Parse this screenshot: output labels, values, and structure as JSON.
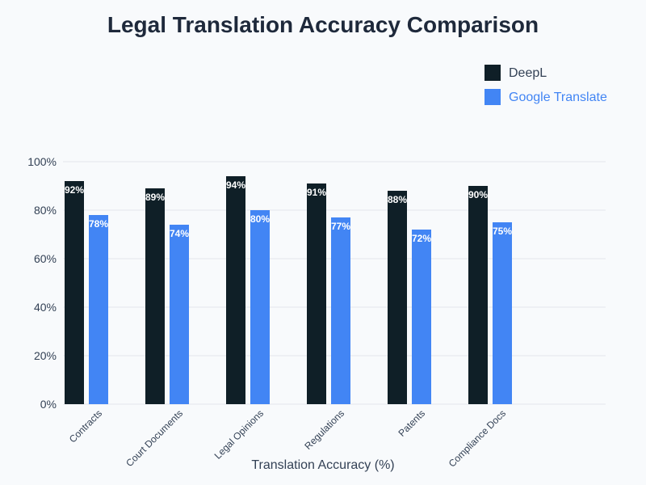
{
  "chart_data": {
    "type": "bar",
    "title": "Legal Translation Accuracy Comparison",
    "xlabel": "Translation Accuracy (%)",
    "ylabel": "",
    "categories": [
      "Contracts",
      "Court Documents",
      "Legal Opinions",
      "Regulations",
      "Patents",
      "Compliance Docs"
    ],
    "series": [
      {
        "name": "DeepL",
        "values": [
          92,
          89,
          94,
          91,
          88,
          90
        ],
        "color": "#0f1f27"
      },
      {
        "name": "Google Translate",
        "values": [
          78,
          74,
          80,
          77,
          72,
          75
        ],
        "color": "#4285f4"
      }
    ],
    "ylim": [
      0,
      100
    ],
    "yticks": [
      0,
      20,
      40,
      60,
      80,
      100
    ],
    "tick_suffix": "%",
    "value_label_suffix": "%",
    "grid": true,
    "legend_position": "top-right"
  },
  "colors": {
    "background": "#f8fafc",
    "title": "#1e293b",
    "grid": "#e5e7eb",
    "axis_text": "#334155",
    "legend_deepl_text": "#334155",
    "legend_google_text": "#4285f4"
  }
}
